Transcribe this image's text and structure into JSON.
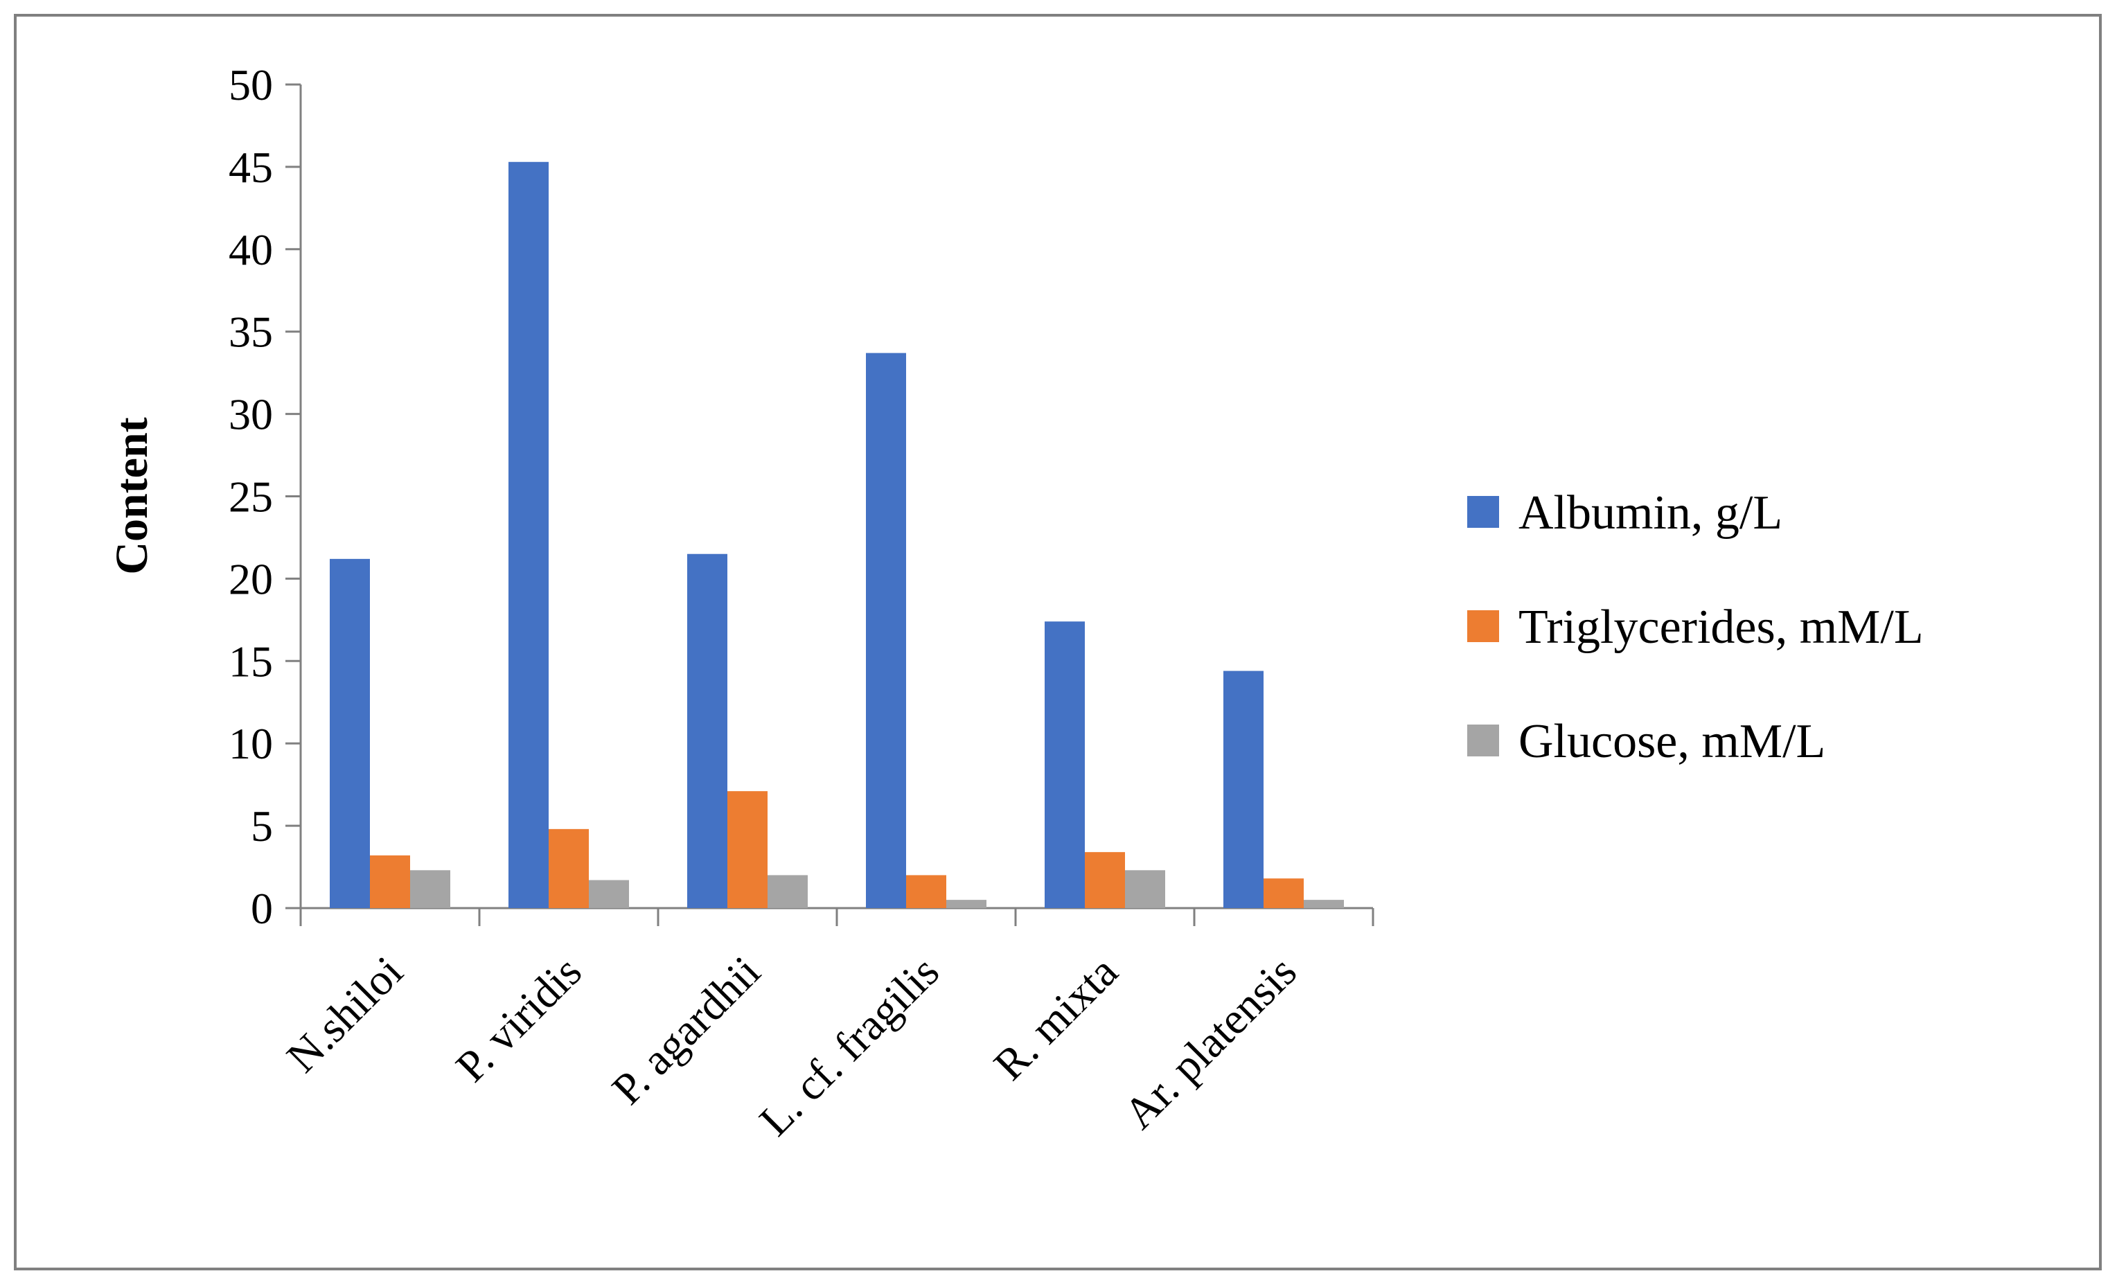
{
  "chart_data": {
    "type": "bar",
    "categories": [
      "N.shiloi",
      "P. viridis",
      "P. agardhii",
      "L. cf. fragilis",
      "R. mixta",
      "Ar. platensis"
    ],
    "series": [
      {
        "name": "Albumin, g/L",
        "color": "#4472C4",
        "values": [
          21.2,
          45.3,
          21.5,
          33.7,
          17.4,
          14.4
        ]
      },
      {
        "name": "Triglycerides, mM/L",
        "color": "#ED7D31",
        "values": [
          3.2,
          4.8,
          7.1,
          2.0,
          3.4,
          1.8
        ]
      },
      {
        "name": "Glucose, mM/L",
        "color": "#A5A5A5",
        "values": [
          2.3,
          1.7,
          2.0,
          0.5,
          2.3,
          0.5
        ]
      }
    ],
    "ylabel": "Content",
    "ylim": [
      0,
      50
    ],
    "yticks": [
      0,
      5,
      10,
      15,
      20,
      25,
      30,
      35,
      40,
      45,
      50
    ],
    "grid": false,
    "legend_position": "right"
  }
}
